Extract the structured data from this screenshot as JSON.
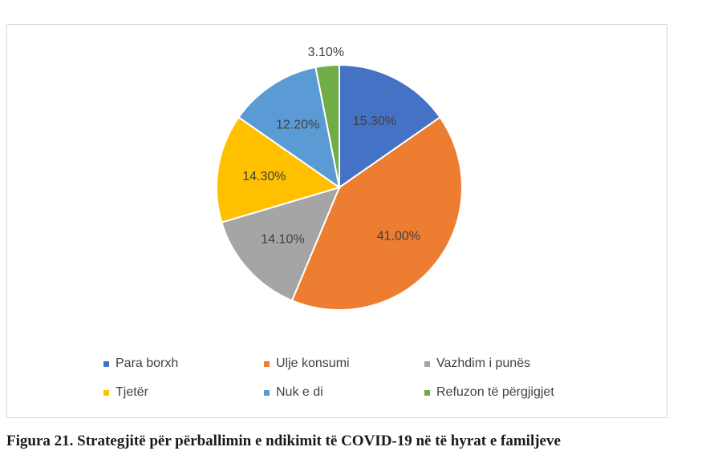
{
  "chart_data": {
    "type": "pie",
    "categories": [
      "Para borxh",
      "Ulje konsumi",
      "Vazhdim i punës",
      "Tjetër",
      "Nuk e di",
      "Refuzon të përgjigjet"
    ],
    "values": [
      15.3,
      41.0,
      14.1,
      14.3,
      12.2,
      3.1
    ],
    "data_labels": [
      "15.30%",
      "41.00%",
      "14.10%",
      "14.30%",
      "12.20%",
      "3.10%"
    ],
    "colors": [
      "#4472c4",
      "#ed7d31",
      "#a5a5a5",
      "#ffc000",
      "#5b9bd5",
      "#70ad47"
    ],
    "legend": "bottom",
    "title": ""
  },
  "caption": "Figura 21. Strategjitë për përballimin e ndikimit të COVID-19 në të hyrat e familjeve"
}
